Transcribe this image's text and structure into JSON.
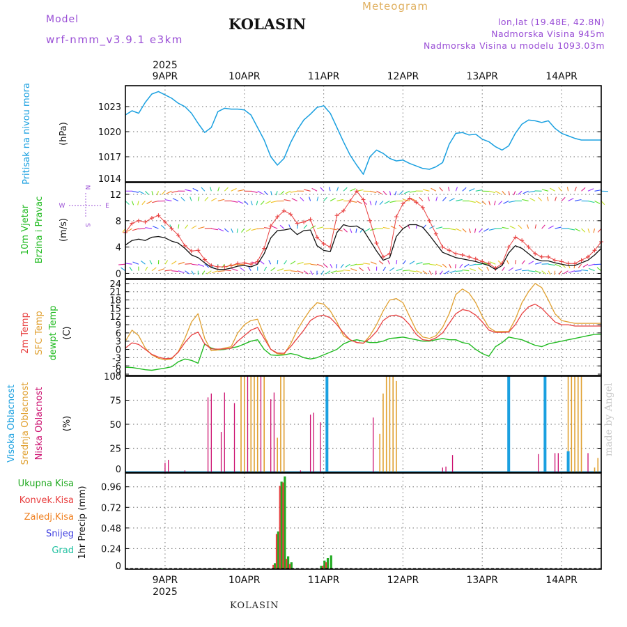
{
  "header": {
    "model_label": "Model",
    "model_name": "wrf-nmm_v3.9.1 e3km",
    "station": "KOLASIN",
    "product": "Meteogram",
    "lonlat": "lon,lat (19.48E, 42.8N)",
    "elevation": "Nadmorska Visina 945m",
    "model_elevation": "Nadmorska Visina u modelu 1093.03m",
    "watermark": "made by Angel",
    "footer_station": "KOLASIN"
  },
  "colors": {
    "pressure": "#1aa0e0",
    "wind_speed": "#e84040",
    "wind_mean": "#111111",
    "temp2m": "#e84040",
    "sfc_temp": "#e0a030",
    "dewpt": "#22bb22",
    "high_cloud": "#1aa0e0",
    "mid_cloud": "#e0a030",
    "low_cloud": "#cc1070",
    "total_precip": "#22aa22",
    "convective": "#e84040",
    "snow": "#4040e0",
    "grid": "#888888"
  },
  "chart_data": [
    {
      "type": "line",
      "name": "pressure",
      "ylabel_main": "Pritisak na nivou mora",
      "ylabel_unit": "(hPa)",
      "yticks": [
        1014,
        1017,
        1020,
        1023
      ],
      "ylim": [
        1014,
        1025.5
      ],
      "xlim": [
        0,
        144
      ],
      "x": [
        0,
        2,
        4,
        6,
        8,
        10,
        12,
        14,
        16,
        18,
        20,
        22,
        24,
        26,
        28,
        30,
        32,
        34,
        36,
        38,
        40,
        42,
        44,
        46,
        48,
        50,
        52,
        54,
        56,
        58,
        60,
        62,
        64,
        66,
        68,
        70,
        72,
        74,
        76,
        78,
        80,
        82,
        84,
        86,
        88,
        90,
        92,
        94,
        96,
        98,
        100,
        102,
        104,
        106,
        108,
        110,
        112,
        114,
        116,
        118,
        120,
        122,
        124,
        126,
        128,
        130,
        132,
        134,
        136,
        138,
        140,
        142,
        144
      ],
      "values": [
        1022,
        1022.5,
        1022.2,
        1023.5,
        1024.5,
        1024.8,
        1024.4,
        1024,
        1023.4,
        1023.0,
        1022.2,
        1021,
        1019.9,
        1020.5,
        1022.4,
        1022.8,
        1022.7,
        1022.7,
        1022.6,
        1022.0,
        1020.5,
        1019.0,
        1017,
        1016,
        1016.8,
        1018.7,
        1020.2,
        1021.4,
        1022.1,
        1022.9,
        1023.1,
        1022.2,
        1020.5,
        1018.8,
        1017.2,
        1016,
        1014.9,
        1017,
        1017.8,
        1017.4,
        1016.8,
        1016.5,
        1016.6,
        1016.2,
        1015.9,
        1015.6,
        1015.5,
        1015.8,
        1016.3,
        1018.5,
        1019.8,
        1019.9,
        1019.6,
        1019.7,
        1019.1,
        1018.8,
        1018.2,
        1017.8,
        1018.3,
        1019.8,
        1020.9,
        1021.4,
        1021.3,
        1021.1,
        1021.3,
        1020.4,
        1019.8,
        1019.5,
        1019.2,
        1019.0,
        1019.0,
        1019.0,
        1019.0
      ]
    },
    {
      "type": "line",
      "name": "wind",
      "ylabel_main": "10m Vjetar",
      "ylabel_sub": "Brzina i Pravac",
      "ylabel_unit": "(m/s)",
      "compass": [
        "N",
        "W",
        "E",
        "S"
      ],
      "yticks": [
        0,
        4,
        8,
        12
      ],
      "ylim": [
        -0.8,
        13.8
      ],
      "series": [
        {
          "name": "gust/speed",
          "values": [
            6.2,
            7.6,
            8.0,
            7.8,
            8.4,
            8.8,
            7.8,
            6.8,
            5.8,
            4.2,
            3.4,
            3.5,
            2.1,
            1.2,
            1.0,
            1.0,
            1.2,
            1.5,
            1.6,
            1.4,
            1.8,
            3.8,
            7.2,
            8.6,
            9.5,
            9.0,
            7.6,
            7.8,
            8.2,
            5.5,
            4.5,
            4.0,
            8.8,
            9.5,
            11.0,
            12.5,
            11.2,
            8.0,
            4.6,
            2.5,
            3.0,
            8.6,
            10.6,
            11.4,
            10.8,
            10.0,
            8.0,
            6.0,
            4.0,
            3.5,
            3.0,
            2.8,
            2.5,
            2.2,
            1.8,
            1.5,
            0.8,
            1.5,
            4.0,
            5.5,
            5.0,
            4.0,
            3.0,
            2.5,
            2.5,
            2.0,
            1.8,
            1.5,
            1.5,
            2.0,
            2.5,
            3.5,
            4.8
          ]
        },
        {
          "name": "mean",
          "values": [
            4.3,
            5.0,
            5.2,
            5.0,
            5.5,
            5.6,
            5.4,
            4.9,
            4.6,
            3.8,
            2.8,
            2.4,
            1.6,
            0.9,
            0.6,
            0.6,
            0.8,
            1.1,
            1.2,
            1.0,
            1.4,
            3.0,
            5.4,
            6.5,
            6.6,
            6.8,
            5.9,
            6.5,
            6.6,
            4.2,
            3.5,
            3.3,
            6.2,
            7.4,
            7.1,
            7.2,
            6.6,
            5.0,
            3.4,
            2.0,
            2.4,
            5.6,
            6.8,
            7.4,
            7.4,
            7.0,
            5.8,
            4.5,
            3.2,
            2.8,
            2.4,
            2.2,
            2.0,
            1.8,
            1.5,
            1.2,
            0.6,
            1.2,
            3.1,
            4.2,
            3.8,
            3.0,
            2.2,
            1.9,
            1.9,
            1.6,
            1.4,
            1.2,
            1.2,
            1.6,
            2.0,
            2.8,
            3.8
          ]
        }
      ]
    },
    {
      "type": "line",
      "name": "temperature",
      "ylabel_main": "2m Temp",
      "ylabel_sub": "SFC Temp",
      "ylabel_sub2": "dewpt Temp",
      "ylabel_unit": "(C)",
      "yticks": [
        -9,
        -6,
        -3,
        0,
        3,
        6,
        9,
        12,
        15,
        18,
        21,
        24
      ],
      "ylim": [
        -9.5,
        25.5
      ],
      "series": [
        {
          "name": "2m Temp",
          "values": [
            0.5,
            2.4,
            1.8,
            0,
            -1.8,
            -2.8,
            -3.4,
            -3.2,
            -1.0,
            2.5,
            5.2,
            6.3,
            2.0,
            0.2,
            0.1,
            0.2,
            0.4,
            3.0,
            5.0,
            7.0,
            8.0,
            4.0,
            0.0,
            -1.3,
            -1.4,
            1.0,
            4.0,
            7.0,
            10.5,
            12.0,
            12.5,
            11.5,
            9.0,
            6.0,
            3.5,
            2.5,
            2.3,
            4.0,
            6.5,
            10.5,
            12.2,
            12.5,
            11.5,
            9.0,
            5.5,
            3.5,
            3.2,
            4.2,
            6.0,
            9.5,
            13.0,
            14.5,
            14.0,
            12.5,
            10.0,
            7.0,
            6.2,
            6.2,
            6.3,
            9.0,
            13.0,
            15.5,
            16.5,
            15.0,
            12.5,
            10.0,
            9.0,
            9.0,
            8.5,
            8.5,
            8.5,
            8.5,
            8.5
          ]
        },
        {
          "name": "SFC Temp",
          "values": [
            3.0,
            7.0,
            5.0,
            0.5,
            -2.0,
            -3.2,
            -3.8,
            -3.5,
            -0.8,
            4.0,
            10.0,
            13.0,
            4.0,
            -0.5,
            -0.2,
            0.5,
            1.0,
            6.0,
            9.0,
            10.5,
            11.0,
            5.0,
            0.0,
            -1.6,
            -1.8,
            2.0,
            7.0,
            11.0,
            14.5,
            17.0,
            16.5,
            14.0,
            10.0,
            5.0,
            3.5,
            2.5,
            2.2,
            5.0,
            9.0,
            14.0,
            18.0,
            18.5,
            17.0,
            12.0,
            7.0,
            4.5,
            4.0,
            5.0,
            8.0,
            13.0,
            20.0,
            22.0,
            20.5,
            17.0,
            12.0,
            8.0,
            6.5,
            6.5,
            6.5,
            11.0,
            17.0,
            21.0,
            24.0,
            22.5,
            18.0,
            13.0,
            10.5,
            10.0,
            9.5,
            9.5,
            9.5,
            9.5,
            9.5
          ]
        },
        {
          "name": "dewpt Temp",
          "values": [
            -6.5,
            -6.6,
            -7.0,
            -7.4,
            -7.6,
            -7.2,
            -6.8,
            -6.3,
            -4.5,
            -3.5,
            -4.0,
            -5.0,
            2.0,
            0.5,
            -0.2,
            0.0,
            0.5,
            1.0,
            2.0,
            3.0,
            3.5,
            0.0,
            -2.0,
            -2.2,
            -2.0,
            -1.5,
            -2.0,
            -3.0,
            -3.5,
            -3.0,
            -2.0,
            -1.0,
            0.0,
            2.0,
            3.0,
            3.5,
            3.0,
            2.5,
            2.5,
            3.0,
            4.0,
            4.2,
            4.5,
            4.0,
            3.5,
            3.0,
            3.0,
            3.5,
            4.0,
            3.5,
            3.5,
            2.5,
            2.0,
            0.0,
            -1.5,
            -2.5,
            1.0,
            2.5,
            4.5,
            4.0,
            3.5,
            2.5,
            1.5,
            1.0,
            2.0,
            2.5,
            3.0,
            3.5,
            4.0,
            4.5,
            5.0,
            5.5,
            5.5
          ]
        }
      ]
    },
    {
      "type": "bar",
      "name": "clouds",
      "ylabel_main": "Visoka Oblacnost",
      "ylabel_sub": "Srednja Oblacnost",
      "ylabel_sub2": "Niska Oblacnost",
      "ylabel_unit": "(%)",
      "yticks": [
        0,
        25,
        50,
        75,
        100
      ],
      "ylim": [
        0,
        100
      ],
      "series": [
        {
          "name": "Niska Oblacnost",
          "points": [
            [
              12,
              10
            ],
            [
              13,
              13
            ],
            [
              18,
              2
            ],
            [
              25,
              78
            ],
            [
              26,
              82
            ],
            [
              29,
              42
            ],
            [
              30,
              83
            ],
            [
              33,
              72
            ],
            [
              37,
              100
            ],
            [
              38,
              100
            ],
            [
              41,
              100
            ],
            [
              44,
              76
            ],
            [
              45,
              83
            ],
            [
              48,
              50
            ],
            [
              53,
              2
            ],
            [
              56,
              60
            ],
            [
              57,
              62
            ],
            [
              59,
              52
            ],
            [
              75,
              57
            ],
            [
              96,
              5
            ],
            [
              97,
              6
            ],
            [
              99,
              18
            ],
            [
              125,
              19
            ],
            [
              127,
              20
            ],
            [
              130,
              20
            ],
            [
              131,
              20
            ],
            [
              140,
              20
            ]
          ]
        },
        {
          "name": "Srednja Oblacnost",
          "points": [
            [
              35,
              100
            ],
            [
              36,
              100
            ],
            [
              38,
              100
            ],
            [
              39,
              100
            ],
            [
              40,
              100
            ],
            [
              42,
              100
            ],
            [
              46,
              36
            ],
            [
              47,
              100
            ],
            [
              48,
              100
            ],
            [
              77,
              40
            ],
            [
              78,
              82
            ],
            [
              79,
              100
            ],
            [
              80,
              100
            ],
            [
              81,
              100
            ],
            [
              82,
              95
            ],
            [
              134,
              100
            ],
            [
              135,
              100
            ],
            [
              136,
              100
            ],
            [
              137,
              100
            ],
            [
              138,
              100
            ],
            [
              142,
              5
            ],
            [
              143,
              15
            ]
          ]
        },
        {
          "name": "Visoka Oblacnost",
          "points": [
            [
              61,
              100
            ],
            [
              116,
              100
            ],
            [
              127,
              100
            ],
            [
              134,
              22
            ]
          ]
        }
      ]
    },
    {
      "type": "bar",
      "name": "precip",
      "legend": [
        "Ukupna Kisa",
        "Konvek.Kisa",
        "Zaledj.Kisa",
        "Snijeg",
        "Grad"
      ],
      "ylabel_main": "1hr Precip",
      "ylabel_unit": "(mm)",
      "yticks": [
        0,
        0.24,
        0.48,
        0.72,
        0.96
      ],
      "ylim": [
        0,
        1.12
      ],
      "series": [
        {
          "name": "Ukupna Kisa",
          "points": [
            [
              29,
              0.01
            ],
            [
              45,
              0.07
            ],
            [
              46,
              0.44
            ],
            [
              47,
              1.02
            ],
            [
              48,
              1.08
            ],
            [
              49,
              0.15
            ],
            [
              50,
              0.08
            ],
            [
              59,
              0.04
            ],
            [
              60,
              0.1
            ],
            [
              61,
              0.13
            ],
            [
              62,
              0.16
            ]
          ]
        },
        {
          "name": "Konvek.Kisa",
          "points": [
            [
              45,
              0.05
            ],
            [
              46,
              0.41
            ],
            [
              47,
              0.97
            ],
            [
              48,
              1.01
            ],
            [
              49,
              0.12
            ],
            [
              50,
              0.06
            ],
            [
              60,
              0.04
            ],
            [
              61,
              0.08
            ]
          ]
        }
      ]
    }
  ],
  "x_axis": {
    "year": "2025",
    "days": [
      {
        "label": "9APR",
        "hour": 12
      },
      {
        "label": "10APR",
        "hour": 36
      },
      {
        "label": "11APR",
        "hour": 60
      },
      {
        "label": "12APR",
        "hour": 84
      },
      {
        "label": "13APR",
        "hour": 108
      },
      {
        "label": "14APR",
        "hour": 132
      }
    ]
  }
}
